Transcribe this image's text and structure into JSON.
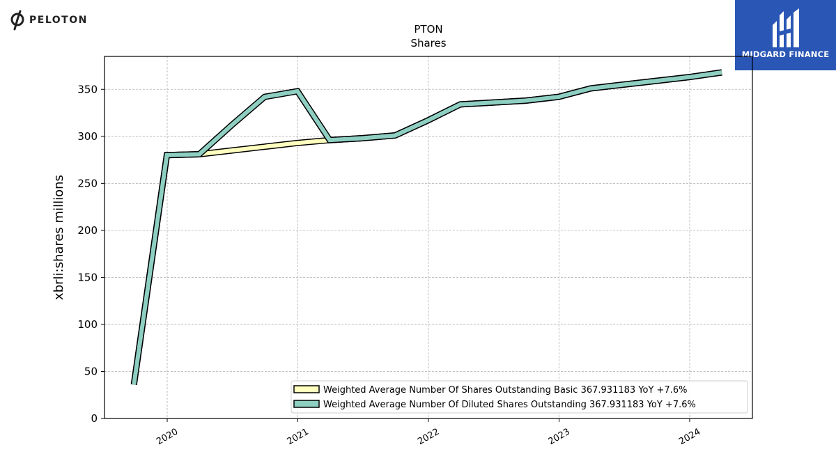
{
  "brand": {
    "name": "PELOTON"
  },
  "badge": {
    "name": "MIDGARD FINANCE",
    "color": "#2a56b5"
  },
  "chart_data": {
    "type": "line",
    "title": "PTON",
    "subtitle": "Shares",
    "xlabel": "",
    "ylabel": "xbrli:shares millions",
    "ylim": [
      0,
      385
    ],
    "xlim": [
      2019.52,
      2024.48
    ],
    "yticks": [
      0,
      50,
      100,
      150,
      200,
      250,
      300,
      350
    ],
    "xticks": [
      "2020",
      "2021",
      "2022",
      "2023",
      "2024"
    ],
    "grid": true,
    "legend_position": "lower-right",
    "series": [
      {
        "name": "Weighted Average Number Of Shares Outstanding Basic  367.931183 YoY +7.6%",
        "color": "#ffffbf",
        "x": [
          "2019-09-30",
          "2019-12-31",
          "2020-03-31",
          "2020-06-30",
          "2020-09-30",
          "2020-12-31",
          "2021-03-31",
          "2021-06-30",
          "2021-09-30",
          "2021-12-31",
          "2022-03-31",
          "2022-06-30",
          "2022-09-30",
          "2022-12-31",
          "2023-03-31",
          "2023-06-30",
          "2023-09-30",
          "2023-12-31",
          "2024-03-31"
        ],
        "values": [
          36,
          280,
          281,
          285,
          289,
          293,
          296,
          298,
          301,
          317,
          334,
          336,
          338,
          342,
          351,
          355,
          359,
          363,
          368
        ]
      },
      {
        "name": "Weighted Average Number Of Diluted Shares Outstanding  367.931183 YoY +7.6%",
        "color": "#8ecfc2",
        "x": [
          "2019-09-30",
          "2019-12-31",
          "2020-03-31",
          "2020-06-30",
          "2020-09-30",
          "2020-12-31",
          "2021-03-31",
          "2021-06-30",
          "2021-09-30",
          "2021-12-31",
          "2022-03-31",
          "2022-06-30",
          "2022-09-30",
          "2022-12-31",
          "2023-03-31",
          "2023-06-30",
          "2023-09-30",
          "2023-12-31",
          "2024-03-31"
        ],
        "values": [
          36,
          280,
          281,
          312,
          342,
          348,
          296,
          298,
          301,
          317,
          334,
          336,
          338,
          342,
          351,
          355,
          359,
          363,
          368
        ]
      }
    ]
  }
}
